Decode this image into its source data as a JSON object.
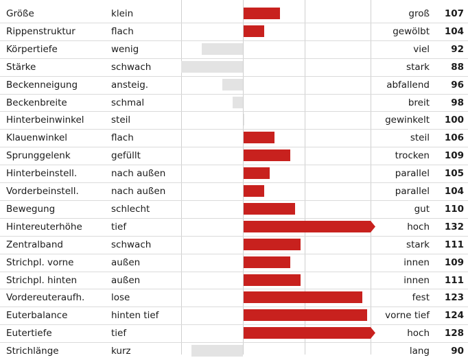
{
  "chart_data": {
    "type": "bar",
    "orientation": "horizontal",
    "center_value": 100,
    "xlim": [
      70,
      130
    ],
    "colors": {
      "above": "#c8211e",
      "below": "#e3e3e3"
    },
    "rows": [
      {
        "trait": "Größe",
        "low": "klein",
        "high": "groß",
        "value": 107
      },
      {
        "trait": "Rippenstruktur",
        "low": "flach",
        "high": "gewölbt",
        "value": 104
      },
      {
        "trait": "Körpertiefe",
        "low": "wenig",
        "high": "viel",
        "value": 92
      },
      {
        "trait": "Stärke",
        "low": "schwach",
        "high": "stark",
        "value": 88
      },
      {
        "trait": "Beckenneigung",
        "low": "ansteig.",
        "high": "abfallend",
        "value": 96
      },
      {
        "trait": "Beckenbreite",
        "low": "schmal",
        "high": "breit",
        "value": 98
      },
      {
        "trait": "Hinterbeinwinkel",
        "low": "steil",
        "high": "gewinkelt",
        "value": 100
      },
      {
        "trait": "Klauenwinkel",
        "low": "flach",
        "high": "steil",
        "value": 106
      },
      {
        "trait": "Sprunggelenk",
        "low": "gefüllt",
        "high": "trocken",
        "value": 109
      },
      {
        "trait": "Hinterbeinstell.",
        "low": "nach außen",
        "high": "parallel",
        "value": 105
      },
      {
        "trait": "Vorderbeinstell.",
        "low": "nach außen",
        "high": "parallel",
        "value": 104
      },
      {
        "trait": "Bewegung",
        "low": "schlecht",
        "high": "gut",
        "value": 110
      },
      {
        "trait": "Hintereuterhöhe",
        "low": "tief",
        "high": "hoch",
        "value": 132
      },
      {
        "trait": "Zentralband",
        "low": "schwach",
        "high": "stark",
        "value": 111
      },
      {
        "trait": "Strichpl. vorne",
        "low": "außen",
        "high": "innen",
        "value": 109
      },
      {
        "trait": "Strichpl. hinten",
        "low": "außen",
        "high": "innen",
        "value": 111
      },
      {
        "trait": "Vordereuteraufh.",
        "low": "lose",
        "high": "fest",
        "value": 123
      },
      {
        "trait": "Euterbalance",
        "low": "hinten tief",
        "high": "vorne tief",
        "value": 124
      },
      {
        "trait": "Eutertiefe",
        "low": "tief",
        "high": "hoch",
        "value": 128
      },
      {
        "trait": "Strichlänge",
        "low": "kurz",
        "high": "lang",
        "value": 90
      }
    ]
  }
}
